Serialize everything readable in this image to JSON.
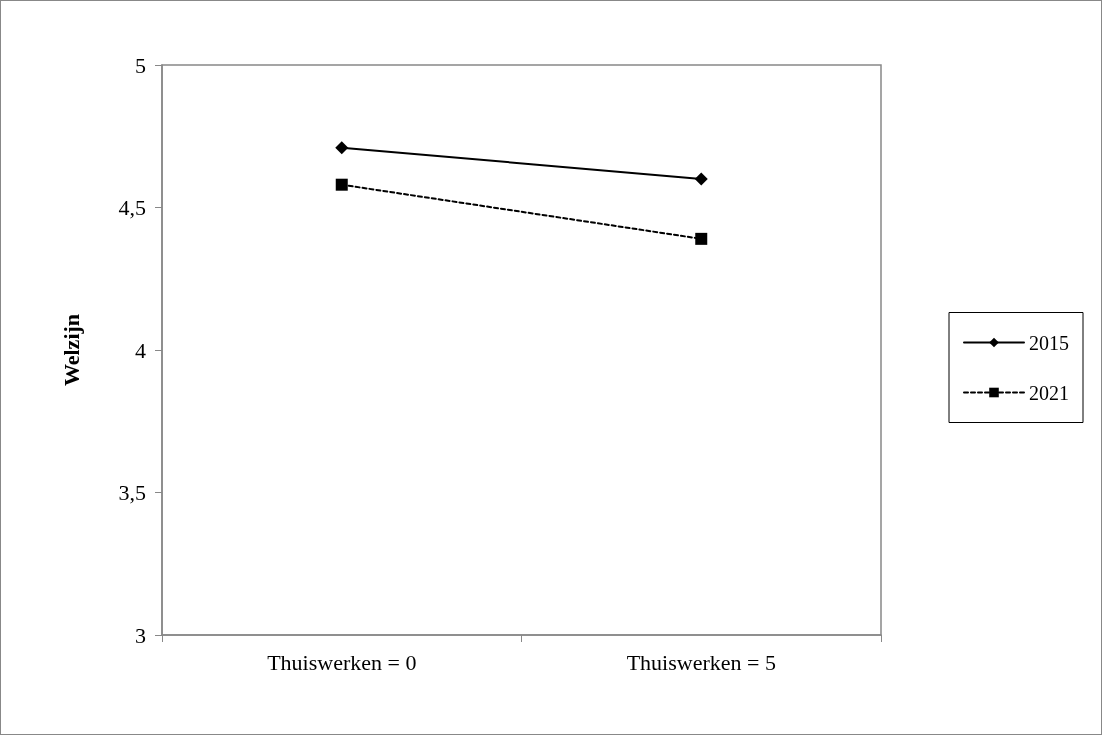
{
  "chart_data": {
    "type": "line",
    "ylabel": "Welzijn",
    "categories": [
      "Thuiswerken = 0",
      "Thuiswerken = 5"
    ],
    "series": [
      {
        "name": "2015",
        "color": "#000000",
        "values": [
          4.71,
          4.6
        ],
        "marker": "diamond",
        "line_style": "solid"
      },
      {
        "name": "2021",
        "color": "#000000",
        "values": [
          4.58,
          4.39
        ],
        "marker": "square",
        "line_style": "dashed"
      }
    ],
    "ylim": [
      3,
      5
    ],
    "yticks": [
      3,
      {
        "value": 3.5,
        "label": "3,5"
      },
      4,
      {
        "value": 4.5,
        "label": "4,5"
      },
      5
    ],
    "grid": false,
    "legend": "right"
  }
}
